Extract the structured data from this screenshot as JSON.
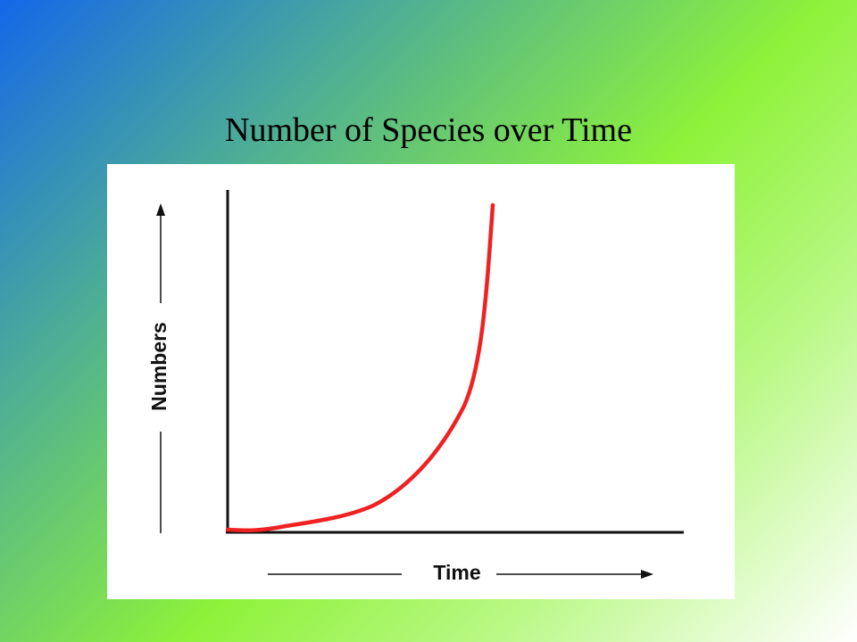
{
  "title": "Number of Species over Time",
  "diagram": {
    "y_label": "Numbers",
    "x_label": "Time"
  }
}
